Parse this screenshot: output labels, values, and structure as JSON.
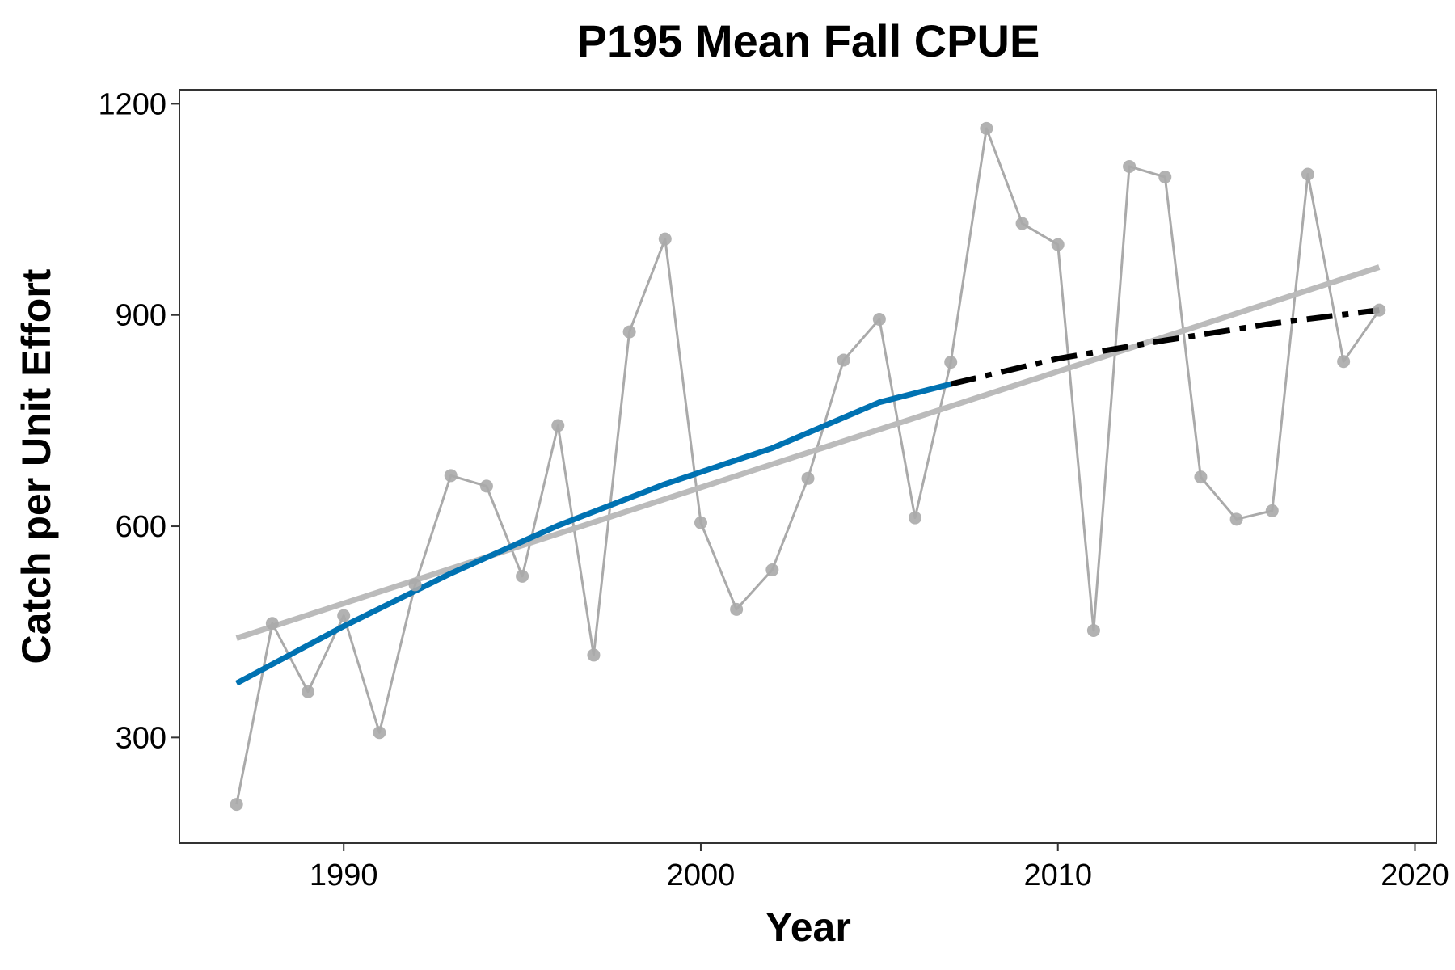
{
  "chart_data": {
    "type": "line",
    "title": "P195 Mean Fall CPUE",
    "xlabel": "Year",
    "ylabel": "Catch per Unit Effort",
    "xlim": [
      1985.4,
      2020.6
    ],
    "ylim": [
      150,
      1220
    ],
    "xticks": [
      1990,
      2000,
      2010,
      2020
    ],
    "yticks": [
      300,
      600,
      900,
      1200
    ],
    "grid": false,
    "legend": "none",
    "series": [
      {
        "style": "points-line",
        "color": "#aaaaaa",
        "x": [
          1987,
          1988,
          1989,
          1990,
          1991,
          1992,
          1993,
          1994,
          1995,
          1996,
          1997,
          1998,
          1999,
          2000,
          2001,
          2002,
          2003,
          2004,
          2005,
          2006,
          2007,
          2008,
          2009,
          2010,
          2011,
          2012,
          2013,
          2014,
          2015,
          2016,
          2017,
          2018,
          2019
        ],
        "y": [
          205,
          462,
          365,
          473,
          307,
          517,
          672,
          657,
          529,
          743,
          417,
          876,
          1008,
          605,
          482,
          538,
          668,
          836,
          894,
          612,
          833,
          1165,
          1030,
          1000,
          452,
          1111,
          1096,
          670,
          610,
          622,
          1100,
          834,
          907
        ]
      },
      {
        "style": "trend-linear",
        "color": "#bbbbbb",
        "x": [
          1987,
          2019
        ],
        "y": [
          441,
          968
        ]
      },
      {
        "style": "trend-fit",
        "color": "#0072b2",
        "x": [
          1987,
          1990,
          1993,
          1996,
          1999,
          2002,
          2005,
          2007
        ],
        "y": [
          377,
          458,
          533,
          601,
          660,
          711,
          776,
          802
        ]
      },
      {
        "style": "trend-extension-dashed",
        "color": "#000000",
        "x": [
          2007,
          2010,
          2013,
          2016,
          2019
        ],
        "y": [
          802,
          838,
          864,
          888,
          907
        ]
      }
    ]
  }
}
